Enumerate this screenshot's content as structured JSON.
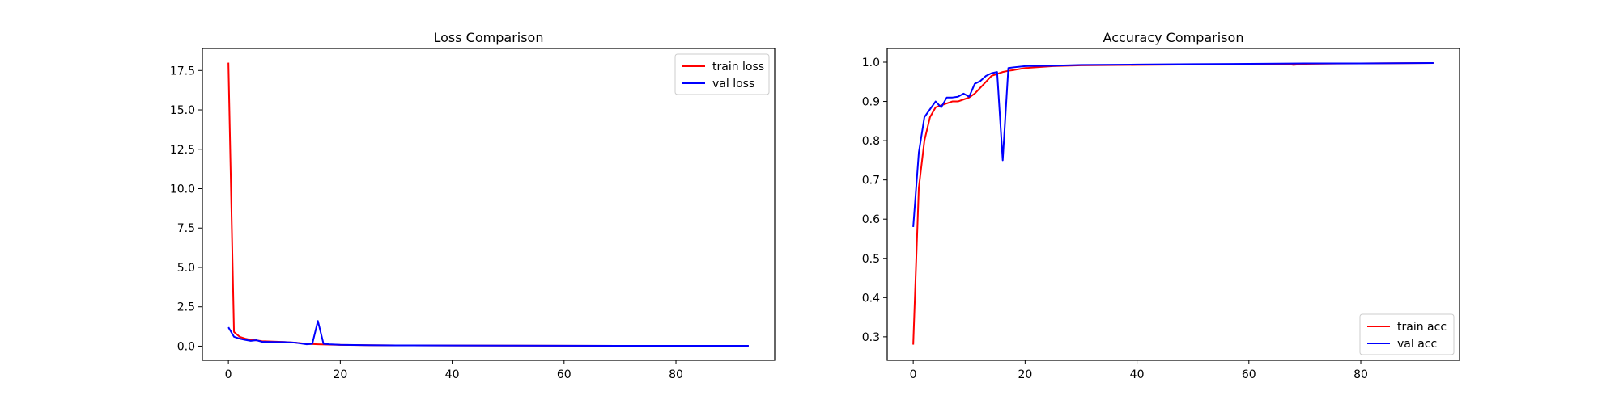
{
  "chart_data": [
    {
      "type": "line",
      "title": "Loss Comparison",
      "xlabel": "",
      "ylabel": "",
      "xlim": [
        -4.65,
        97.65
      ],
      "ylim": [
        -0.9,
        18.9
      ],
      "xticks": [
        0,
        20,
        40,
        60,
        80
      ],
      "xtick_labels": [
        "0",
        "20",
        "40",
        "60",
        "80"
      ],
      "yticks": [
        0.0,
        2.5,
        5.0,
        7.5,
        10.0,
        12.5,
        15.0,
        17.5
      ],
      "ytick_labels": [
        "0.0",
        "2.5",
        "5.0",
        "7.5",
        "10.0",
        "12.5",
        "15.0",
        "17.5"
      ],
      "legend_position": "top-right",
      "series": [
        {
          "name": "train loss",
          "color": "#ff0000",
          "x": [
            0,
            1,
            2,
            3,
            4,
            5,
            6,
            8,
            10,
            12,
            14,
            16,
            18,
            20,
            25,
            30,
            40,
            50,
            60,
            70,
            80,
            93
          ],
          "y": [
            18.0,
            0.9,
            0.6,
            0.48,
            0.4,
            0.37,
            0.32,
            0.29,
            0.27,
            0.22,
            0.15,
            0.12,
            0.1,
            0.08,
            0.06,
            0.05,
            0.04,
            0.035,
            0.03,
            0.025,
            0.02,
            0.02
          ]
        },
        {
          "name": "val loss",
          "color": "#0000ff",
          "x": [
            0,
            1,
            2,
            3,
            4,
            5,
            6,
            8,
            10,
            12,
            14,
            15,
            16,
            17,
            18,
            20,
            25,
            30,
            40,
            50,
            60,
            70,
            80,
            93
          ],
          "y": [
            1.2,
            0.6,
            0.48,
            0.4,
            0.34,
            0.38,
            0.28,
            0.27,
            0.26,
            0.22,
            0.12,
            0.15,
            1.6,
            0.15,
            0.12,
            0.09,
            0.06,
            0.05,
            0.04,
            0.035,
            0.03,
            0.025,
            0.02,
            0.02
          ]
        }
      ]
    },
    {
      "type": "line",
      "title": "Accuracy Comparison",
      "xlabel": "",
      "ylabel": "",
      "xlim": [
        -4.65,
        97.65
      ],
      "ylim": [
        0.24,
        1.035
      ],
      "xticks": [
        0,
        20,
        40,
        60,
        80
      ],
      "xtick_labels": [
        "0",
        "20",
        "40",
        "60",
        "80"
      ],
      "yticks": [
        0.3,
        0.4,
        0.5,
        0.6,
        0.7,
        0.8,
        0.9,
        1.0
      ],
      "ytick_labels": [
        "0.3",
        "0.4",
        "0.5",
        "0.6",
        "0.7",
        "0.8",
        "0.9",
        "1.0"
      ],
      "legend_position": "bottom-right",
      "series": [
        {
          "name": "train acc",
          "color": "#ff0000",
          "x": [
            0,
            1,
            2,
            3,
            4,
            5,
            6,
            7,
            8,
            9,
            10,
            11,
            12,
            13,
            14,
            15,
            16,
            17,
            18,
            20,
            25,
            30,
            40,
            50,
            60,
            67,
            68,
            70,
            80,
            93
          ],
          "y": [
            0.28,
            0.68,
            0.8,
            0.86,
            0.885,
            0.89,
            0.895,
            0.9,
            0.9,
            0.905,
            0.91,
            0.92,
            0.935,
            0.95,
            0.965,
            0.97,
            0.975,
            0.978,
            0.98,
            0.985,
            0.99,
            0.992,
            0.993,
            0.994,
            0.995,
            0.995,
            0.993,
            0.996,
            0.997,
            0.998
          ]
        },
        {
          "name": "val acc",
          "color": "#0000ff",
          "x": [
            0,
            1,
            2,
            3,
            4,
            5,
            6,
            7,
            8,
            9,
            10,
            11,
            12,
            13,
            14,
            15,
            16,
            17,
            18,
            20,
            25,
            30,
            40,
            50,
            60,
            70,
            80,
            93
          ],
          "y": [
            0.58,
            0.77,
            0.86,
            0.88,
            0.9,
            0.885,
            0.91,
            0.91,
            0.912,
            0.92,
            0.912,
            0.945,
            0.952,
            0.965,
            0.972,
            0.975,
            0.75,
            0.985,
            0.987,
            0.99,
            0.991,
            0.993,
            0.994,
            0.995,
            0.996,
            0.997,
            0.997,
            0.998
          ]
        }
      ]
    }
  ]
}
